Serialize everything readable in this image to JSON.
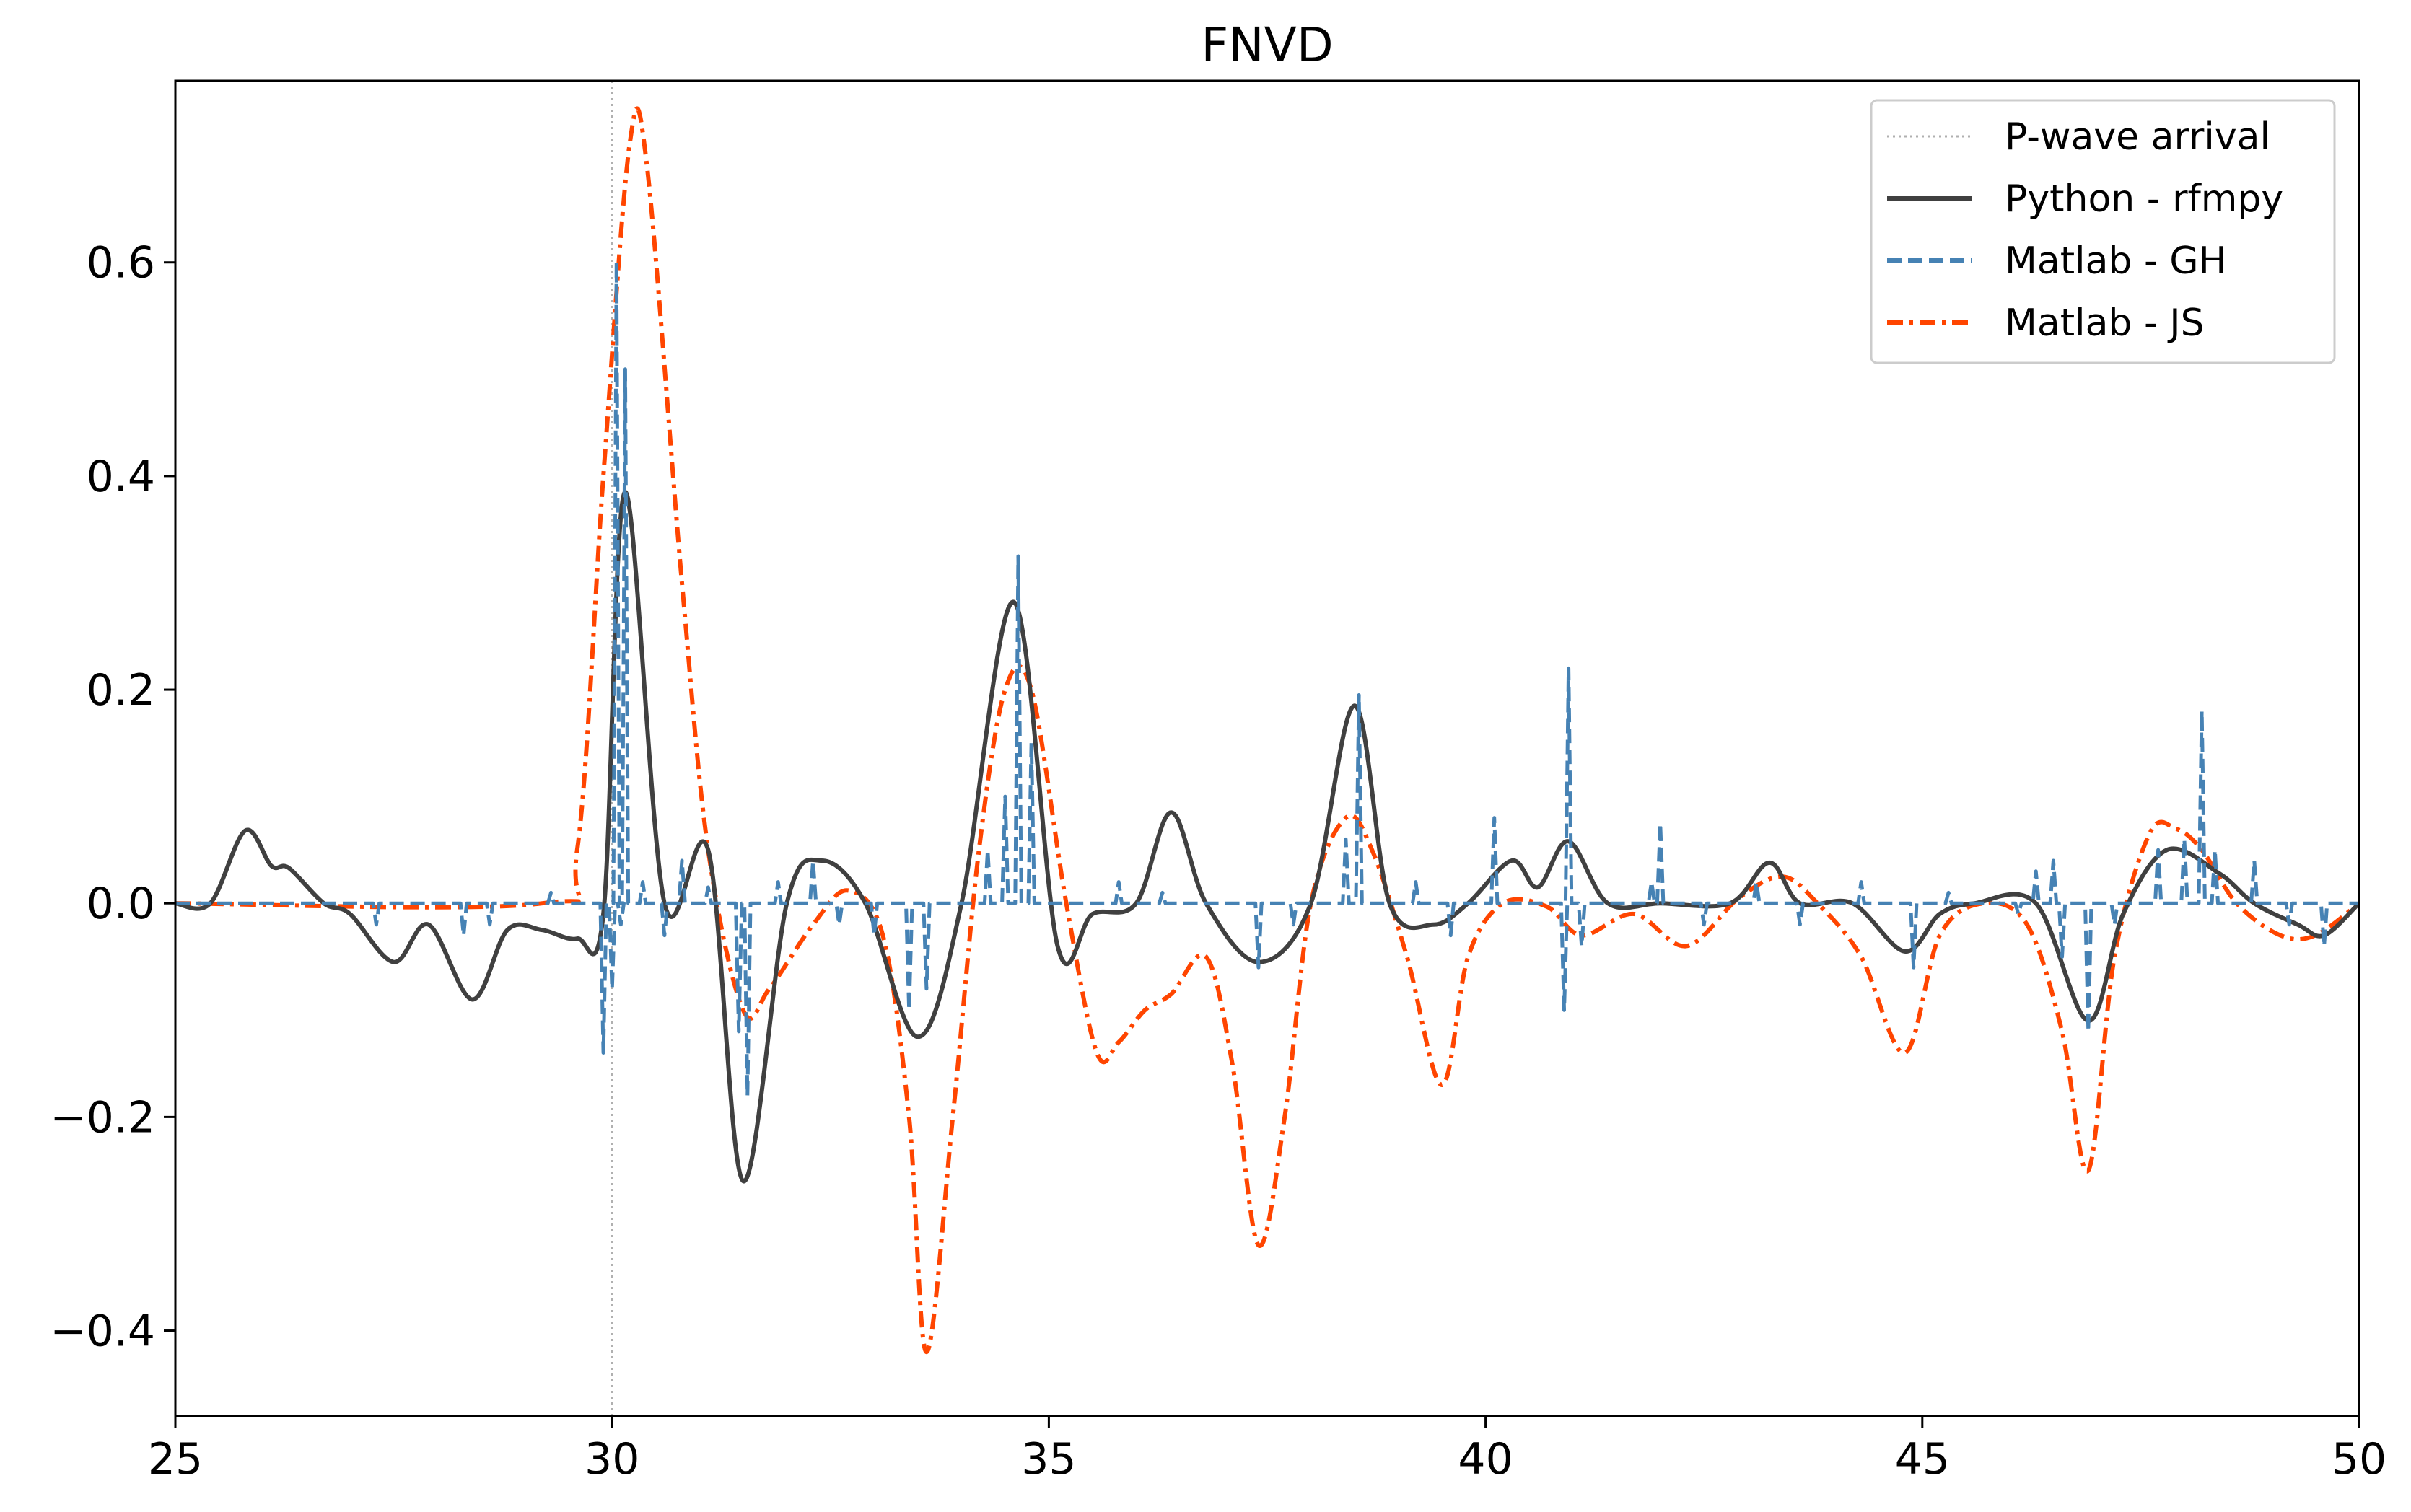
{
  "chart_data": {
    "type": "line",
    "title": "FNVD",
    "xlabel": "",
    "ylabel": "",
    "xlim": [
      25,
      50
    ],
    "ylim": [
      -0.48,
      0.77
    ],
    "x_ticks": [
      25,
      30,
      35,
      40,
      45,
      50
    ],
    "x_tick_labels": [
      "25",
      "30",
      "35",
      "40",
      "45",
      "50"
    ],
    "y_ticks": [
      -0.4,
      -0.2,
      0.0,
      0.2,
      0.4,
      0.6
    ],
    "y_tick_labels": [
      "−0.4",
      "−0.2",
      "0.0",
      "0.2",
      "0.4",
      "0.6"
    ],
    "grid": false,
    "legend_position": "top-right",
    "reference_line": {
      "name": "P-wave arrival",
      "x": 30,
      "color": "#b0b0b0",
      "style": "dotted"
    },
    "series": [
      {
        "name": "Python - rfmpy",
        "color": "#404040",
        "style": "solid",
        "kind": "smooth",
        "points": [
          [
            25.0,
            0.0
          ],
          [
            25.4,
            0.0
          ],
          [
            25.8,
            0.068
          ],
          [
            26.1,
            0.035
          ],
          [
            26.3,
            0.033
          ],
          [
            26.7,
            0.0
          ],
          [
            27.0,
            -0.01
          ],
          [
            27.5,
            -0.055
          ],
          [
            27.9,
            -0.02
          ],
          [
            28.4,
            -0.09
          ],
          [
            28.8,
            -0.025
          ],
          [
            29.2,
            -0.025
          ],
          [
            29.6,
            -0.033
          ],
          [
            29.9,
            -0.01
          ],
          [
            30.15,
            0.385
          ],
          [
            30.6,
            0.0
          ],
          [
            31.1,
            0.05
          ],
          [
            31.5,
            -0.26
          ],
          [
            32.0,
            0.0
          ],
          [
            32.4,
            0.04
          ],
          [
            32.9,
            0.0
          ],
          [
            33.5,
            -0.125
          ],
          [
            34.0,
            0.0
          ],
          [
            34.6,
            0.282
          ],
          [
            35.1,
            -0.04
          ],
          [
            35.5,
            -0.01
          ],
          [
            36.0,
            0.0
          ],
          [
            36.4,
            0.085
          ],
          [
            36.8,
            0.0
          ],
          [
            37.4,
            -0.055
          ],
          [
            38.0,
            0.0
          ],
          [
            38.5,
            0.185
          ],
          [
            38.9,
            0.0
          ],
          [
            39.4,
            -0.02
          ],
          [
            39.8,
            0.0
          ],
          [
            40.3,
            0.04
          ],
          [
            40.6,
            0.015
          ],
          [
            40.95,
            0.058
          ],
          [
            41.4,
            0.0
          ],
          [
            42.0,
            0.0
          ],
          [
            42.8,
            0.0
          ],
          [
            43.25,
            0.038
          ],
          [
            43.6,
            0.0
          ],
          [
            44.2,
            0.0
          ],
          [
            44.8,
            -0.045
          ],
          [
            45.2,
            -0.01
          ],
          [
            45.6,
            0.0
          ],
          [
            46.3,
            0.0
          ],
          [
            46.9,
            -0.11
          ],
          [
            47.3,
            -0.01
          ],
          [
            47.8,
            0.05
          ],
          [
            48.4,
            0.028
          ],
          [
            48.8,
            0.0
          ],
          [
            49.3,
            -0.02
          ],
          [
            49.6,
            -0.03
          ],
          [
            50.0,
            0.0
          ]
        ]
      },
      {
        "name": "Matlab - GH",
        "color": "#4682b4",
        "style": "dashed",
        "kind": "spikes",
        "base": 0,
        "points": [
          [
            27.3,
            -0.02
          ],
          [
            28.3,
            -0.03
          ],
          [
            28.6,
            -0.02
          ],
          [
            29.3,
            0.01
          ],
          [
            29.9,
            -0.14
          ],
          [
            30.0,
            -0.08
          ],
          [
            30.05,
            0.6
          ],
          [
            30.1,
            -0.02
          ],
          [
            30.15,
            0.5
          ],
          [
            30.35,
            0.02
          ],
          [
            30.6,
            -0.03
          ],
          [
            30.8,
            0.04
          ],
          [
            31.1,
            0.015
          ],
          [
            31.45,
            -0.12
          ],
          [
            31.55,
            -0.18
          ],
          [
            31.9,
            0.02
          ],
          [
            32.3,
            0.04
          ],
          [
            32.6,
            -0.02
          ],
          [
            33.0,
            -0.03
          ],
          [
            33.4,
            -0.1
          ],
          [
            33.6,
            -0.08
          ],
          [
            34.3,
            0.05
          ],
          [
            34.5,
            0.1
          ],
          [
            34.65,
            0.325
          ],
          [
            34.8,
            0.15
          ],
          [
            35.8,
            0.02
          ],
          [
            36.3,
            0.01
          ],
          [
            37.4,
            -0.06
          ],
          [
            37.8,
            -0.02
          ],
          [
            38.4,
            0.06
          ],
          [
            38.55,
            0.195
          ],
          [
            39.2,
            0.02
          ],
          [
            39.6,
            -0.03
          ],
          [
            40.1,
            0.08
          ],
          [
            40.9,
            -0.1
          ],
          [
            40.95,
            0.22
          ],
          [
            41.1,
            -0.04
          ],
          [
            41.9,
            0.02
          ],
          [
            42.0,
            0.075
          ],
          [
            42.5,
            -0.02
          ],
          [
            43.1,
            0.02
          ],
          [
            43.6,
            -0.02
          ],
          [
            44.3,
            0.02
          ],
          [
            44.9,
            -0.06
          ],
          [
            45.3,
            0.01
          ],
          [
            46.1,
            -0.01
          ],
          [
            46.3,
            0.03
          ],
          [
            46.5,
            0.04
          ],
          [
            46.6,
            -0.05
          ],
          [
            46.9,
            -0.12
          ],
          [
            47.2,
            -0.02
          ],
          [
            47.7,
            0.05
          ],
          [
            48.0,
            0.06
          ],
          [
            48.2,
            0.18
          ],
          [
            48.35,
            0.05
          ],
          [
            48.8,
            0.04
          ],
          [
            49.2,
            -0.02
          ],
          [
            49.6,
            -0.04
          ]
        ]
      },
      {
        "name": "Matlab - JS",
        "color": "#ff4500",
        "style": "dashdot",
        "kind": "smooth",
        "points": [
          [
            25.0,
            0.0
          ],
          [
            29.2,
            0.0
          ],
          [
            29.6,
            0.05
          ],
          [
            29.9,
            0.4
          ],
          [
            30.2,
            0.71
          ],
          [
            30.4,
            0.69
          ],
          [
            30.8,
            0.3
          ],
          [
            31.1,
            0.05
          ],
          [
            31.5,
            -0.1
          ],
          [
            31.8,
            -0.08
          ],
          [
            32.3,
            -0.02
          ],
          [
            32.7,
            0.012
          ],
          [
            33.1,
            -0.03
          ],
          [
            33.4,
            -0.2
          ],
          [
            33.6,
            -0.42
          ],
          [
            33.9,
            -0.2
          ],
          [
            34.2,
            0.05
          ],
          [
            34.5,
            0.2
          ],
          [
            34.8,
            0.2
          ],
          [
            35.2,
            0.0
          ],
          [
            35.55,
            -0.14
          ],
          [
            35.8,
            -0.13
          ],
          [
            36.1,
            -0.1
          ],
          [
            36.4,
            -0.085
          ],
          [
            36.8,
            -0.05
          ],
          [
            37.1,
            -0.15
          ],
          [
            37.4,
            -0.32
          ],
          [
            37.7,
            -0.2
          ],
          [
            38.0,
            0.0
          ],
          [
            38.4,
            0.08
          ],
          [
            38.7,
            0.05
          ],
          [
            39.1,
            -0.05
          ],
          [
            39.5,
            -0.17
          ],
          [
            39.8,
            -0.05
          ],
          [
            40.2,
            0.0
          ],
          [
            40.7,
            -0.003
          ],
          [
            41.1,
            -0.03
          ],
          [
            41.7,
            -0.01
          ],
          [
            42.3,
            -0.04
          ],
          [
            42.9,
            0.005
          ],
          [
            43.4,
            0.025
          ],
          [
            43.8,
            0.0
          ],
          [
            44.3,
            -0.05
          ],
          [
            44.8,
            -0.14
          ],
          [
            45.2,
            -0.03
          ],
          [
            45.7,
            0.0
          ],
          [
            46.2,
            -0.02
          ],
          [
            46.6,
            -0.12
          ],
          [
            46.9,
            -0.25
          ],
          [
            47.2,
            -0.05
          ],
          [
            47.6,
            0.065
          ],
          [
            47.9,
            0.07
          ],
          [
            48.2,
            0.05
          ],
          [
            48.6,
            0.0
          ],
          [
            49.1,
            -0.03
          ],
          [
            49.5,
            -0.03
          ],
          [
            50.0,
            0.0
          ]
        ]
      }
    ]
  }
}
